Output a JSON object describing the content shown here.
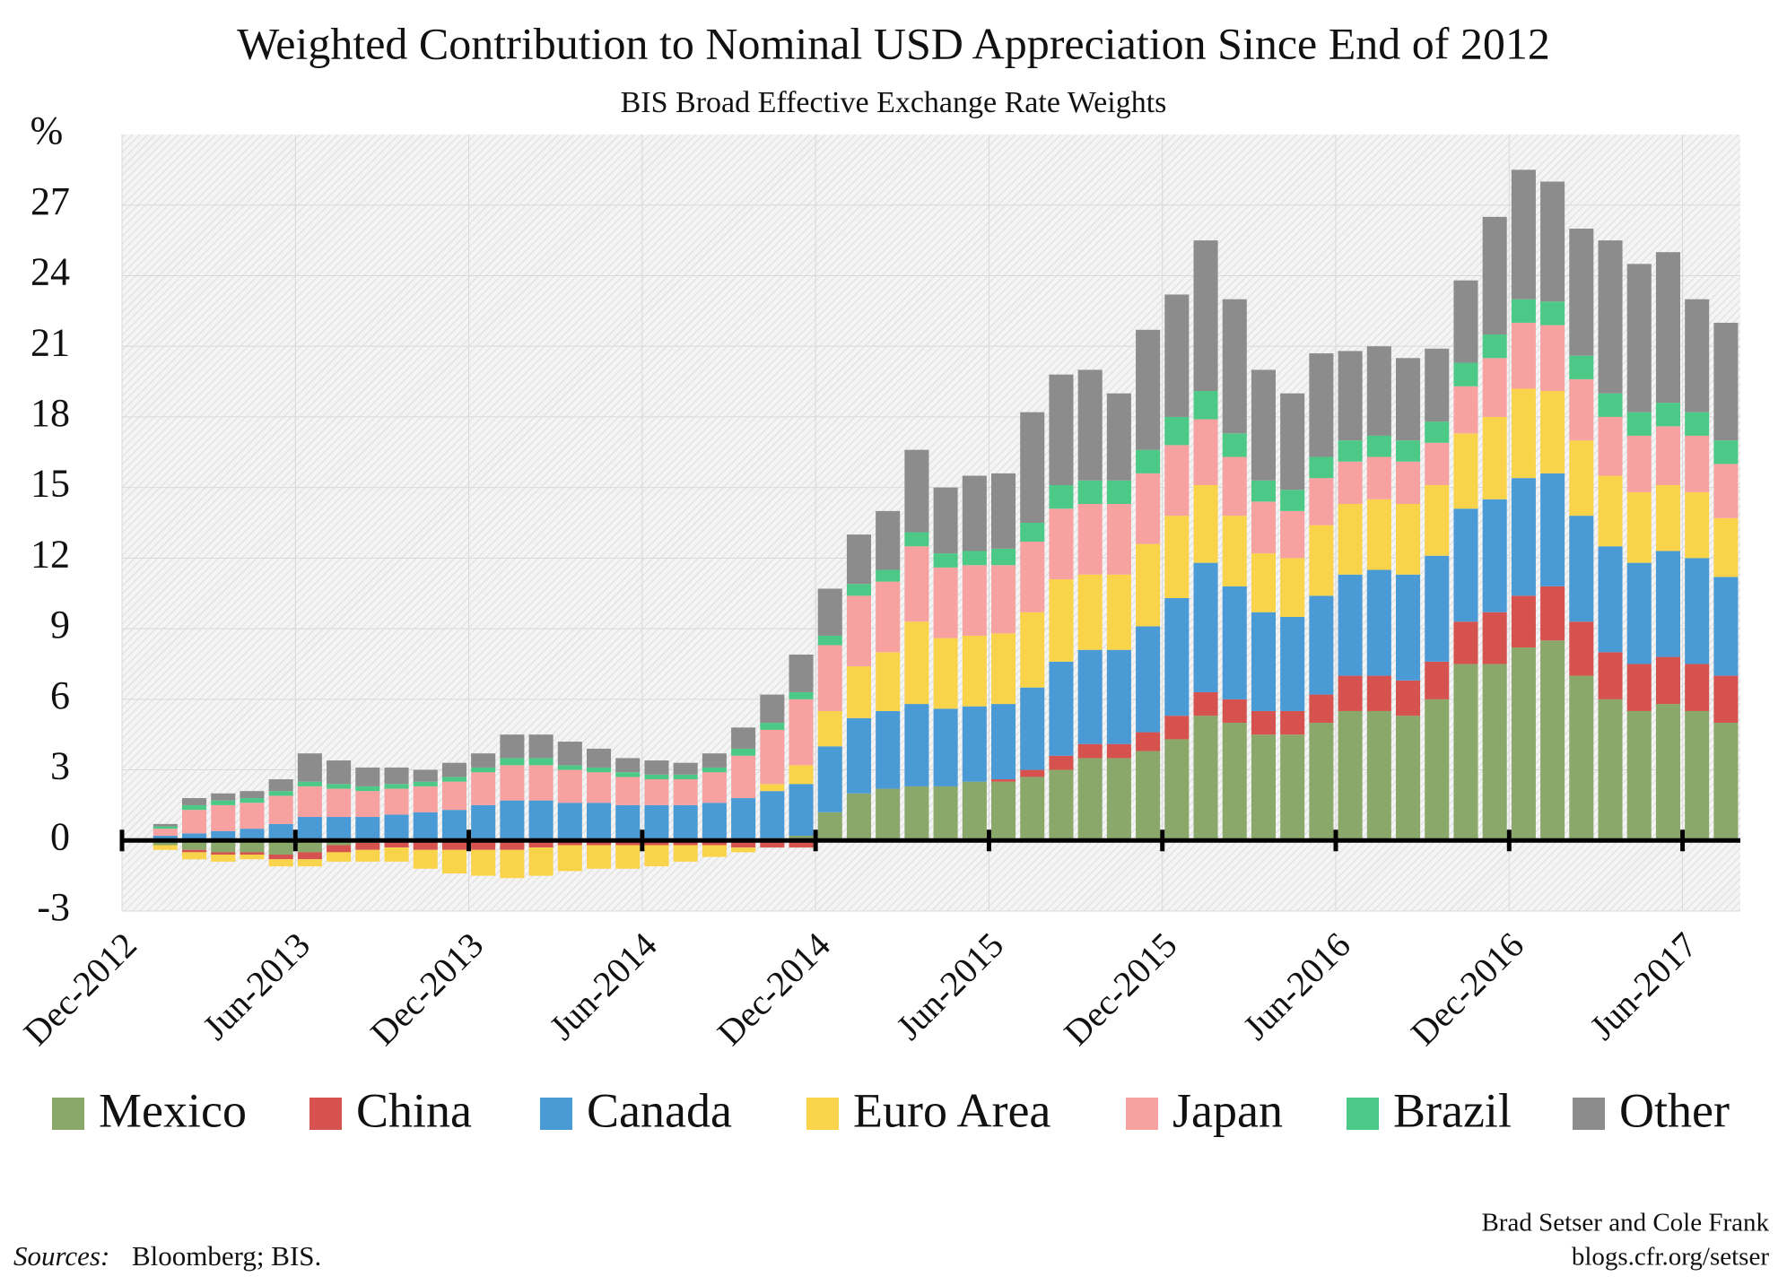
{
  "chart_data": {
    "type": "stacked_bar",
    "title": "Weighted Contribution to Nominal USD Appreciation Since End of 2012",
    "subtitle": "BIS Broad  Effective Exchange Rate Weights",
    "y_unit": "%",
    "categories": [
      "Dec-2012",
      null,
      null,
      null,
      null,
      null,
      "Jun-2013",
      null,
      null,
      null,
      null,
      null,
      "Dec-2013",
      null,
      null,
      null,
      null,
      null,
      "Jun-2014",
      null,
      null,
      null,
      null,
      null,
      "Dec-2014",
      null,
      null,
      null,
      null,
      null,
      "Jun-2015",
      null,
      null,
      null,
      null,
      null,
      "Dec-2015",
      null,
      null,
      null,
      null,
      null,
      "Jun-2016",
      null,
      null,
      null,
      null,
      null,
      "Dec-2016",
      null,
      null,
      null,
      null,
      null,
      "Jun-2017",
      null
    ],
    "series": [
      {
        "name": "Mexico",
        "color": "#8aa86a",
        "values": [
          0,
          -0.2,
          -0.4,
          -0.5,
          -0.5,
          -0.6,
          -0.5,
          -0.2,
          -0.1,
          0,
          0,
          0,
          0,
          0,
          0,
          0,
          0,
          0,
          0,
          0,
          0,
          0,
          0.1,
          0.2,
          1.2,
          2.0,
          2.2,
          2.3,
          2.3,
          2.5,
          2.5,
          2.7,
          3.0,
          3.5,
          3.5,
          3.8,
          4.3,
          5.3,
          5.0,
          4.5,
          4.5,
          5.0,
          5.5,
          5.5,
          5.3,
          6.0,
          7.5,
          7.5,
          8.2,
          8.5,
          7.0,
          6.0,
          5.5,
          5.8,
          5.5,
          5.0
        ]
      },
      {
        "name": "China",
        "color": "#d5524f",
        "values": [
          0,
          0,
          -0.1,
          -0.1,
          -0.1,
          -0.2,
          -0.3,
          -0.3,
          -0.3,
          -0.3,
          -0.4,
          -0.4,
          -0.4,
          -0.4,
          -0.3,
          -0.2,
          -0.2,
          -0.2,
          -0.2,
          -0.2,
          -0.2,
          -0.3,
          -0.3,
          -0.3,
          0,
          0,
          0,
          0,
          0,
          0,
          0.1,
          0.3,
          0.6,
          0.6,
          0.6,
          0.8,
          1.0,
          1.0,
          1.0,
          1.0,
          1.0,
          1.2,
          1.5,
          1.5,
          1.5,
          1.6,
          1.8,
          2.2,
          2.2,
          2.3,
          2.3,
          2.0,
          2.0,
          2.0,
          2.0,
          2.0
        ]
      },
      {
        "name": "Canada",
        "color": "#4a9ad6",
        "values": [
          0,
          0.2,
          0.3,
          0.4,
          0.5,
          0.7,
          1.0,
          1.0,
          1.0,
          1.1,
          1.2,
          1.3,
          1.5,
          1.7,
          1.7,
          1.6,
          1.6,
          1.5,
          1.5,
          1.5,
          1.6,
          1.8,
          2.0,
          2.2,
          2.8,
          3.2,
          3.3,
          3.5,
          3.3,
          3.2,
          3.2,
          3.5,
          4.0,
          4.0,
          4.0,
          4.5,
          5.0,
          5.5,
          4.8,
          4.2,
          4.0,
          4.2,
          4.3,
          4.5,
          4.5,
          4.5,
          4.8,
          4.8,
          5.0,
          4.8,
          4.5,
          4.5,
          4.3,
          4.5,
          4.5,
          4.2
        ]
      },
      {
        "name": "Euro Area",
        "color": "#f9d44a",
        "values": [
          0,
          -0.2,
          -0.3,
          -0.3,
          -0.2,
          -0.3,
          -0.3,
          -0.4,
          -0.5,
          -0.6,
          -0.8,
          -1.0,
          -1.1,
          -1.2,
          -1.2,
          -1.1,
          -1.0,
          -1.0,
          -0.9,
          -0.7,
          -0.5,
          -0.2,
          0.3,
          0.8,
          1.5,
          2.2,
          2.5,
          3.5,
          3.0,
          3.0,
          3.0,
          3.2,
          3.5,
          3.2,
          3.2,
          3.5,
          3.5,
          3.3,
          3.0,
          2.5,
          2.5,
          3.0,
          3.0,
          3.0,
          3.0,
          3.0,
          3.2,
          3.5,
          3.8,
          3.5,
          3.2,
          3.0,
          3.0,
          2.8,
          2.8,
          2.5
        ]
      },
      {
        "name": "Japan",
        "color": "#f8a1a1",
        "values": [
          0,
          0.3,
          1.0,
          1.1,
          1.1,
          1.2,
          1.3,
          1.2,
          1.1,
          1.1,
          1.1,
          1.2,
          1.4,
          1.5,
          1.5,
          1.4,
          1.3,
          1.2,
          1.1,
          1.1,
          1.3,
          1.8,
          2.3,
          2.8,
          2.8,
          3.0,
          3.0,
          3.2,
          3.0,
          3.0,
          2.9,
          3.0,
          3.0,
          3.0,
          3.0,
          3.0,
          3.0,
          2.8,
          2.5,
          2.2,
          2.0,
          2.0,
          1.8,
          1.8,
          1.8,
          1.8,
          2.0,
          2.5,
          2.8,
          2.8,
          2.6,
          2.5,
          2.4,
          2.5,
          2.4,
          2.3
        ]
      },
      {
        "name": "Brazil",
        "color": "#4cc986",
        "values": [
          0,
          0.1,
          0.2,
          0.2,
          0.2,
          0.2,
          0.2,
          0.2,
          0.2,
          0.2,
          0.2,
          0.2,
          0.2,
          0.3,
          0.3,
          0.2,
          0.2,
          0.2,
          0.2,
          0.2,
          0.2,
          0.3,
          0.3,
          0.3,
          0.4,
          0.5,
          0.5,
          0.6,
          0.6,
          0.6,
          0.7,
          0.8,
          1.0,
          1.0,
          1.0,
          1.0,
          1.2,
          1.2,
          1.0,
          0.9,
          0.9,
          0.9,
          0.9,
          0.9,
          0.9,
          0.9,
          1.0,
          1.0,
          1.0,
          1.0,
          1.0,
          1.0,
          1.0,
          1.0,
          1.0,
          1.0
        ]
      },
      {
        "name": "Other",
        "color": "#8c8c8c",
        "values": [
          0,
          0.1,
          0.3,
          0.3,
          0.3,
          0.5,
          1.2,
          1.0,
          0.8,
          0.7,
          0.5,
          0.6,
          0.6,
          1.0,
          1.0,
          1.0,
          0.8,
          0.6,
          0.6,
          0.5,
          0.6,
          0.9,
          1.2,
          1.6,
          2.0,
          2.1,
          2.5,
          3.5,
          2.8,
          3.2,
          3.2,
          4.7,
          4.7,
          4.7,
          3.7,
          5.1,
          5.2,
          6.4,
          5.7,
          4.7,
          4.1,
          4.4,
          3.8,
          3.8,
          3.5,
          3.1,
          3.5,
          5.0,
          5.5,
          5.1,
          5.4,
          6.5,
          6.3,
          6.4,
          4.8,
          5.0
        ]
      }
    ],
    "ylim": [
      -3,
      30
    ],
    "yticks": [
      -3,
      0,
      3,
      6,
      9,
      12,
      15,
      18,
      21,
      24,
      27
    ],
    "grid": true,
    "legend": "bottom",
    "sources_label": "Sources:",
    "sources": "Bloomberg; BIS.",
    "credit": [
      "Brad Setser and Cole Frank",
      "blogs.cfr.org/setser"
    ]
  }
}
